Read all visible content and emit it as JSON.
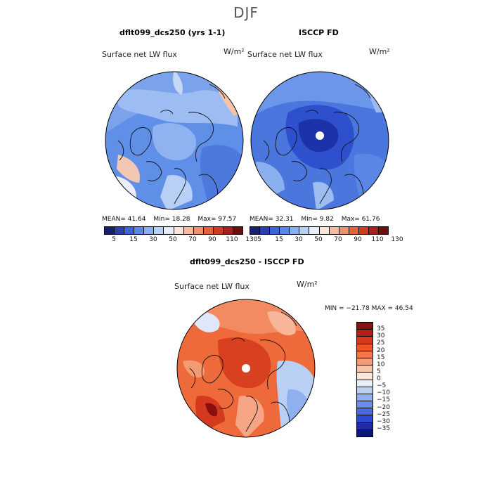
{
  "season": "DJF",
  "panels": [
    {
      "title": "dflt099_dcs250 (yrs 1-1)",
      "variable": "Surface net LW flux",
      "units": "W/m²",
      "stats": {
        "mean": "MEAN=  41.64",
        "min": "Min=   18.28",
        "max": "Max=   97.57"
      },
      "palette": [
        "#16226e",
        "#2c3fae",
        "#3d63d8",
        "#5a88e8",
        "#8aaff0",
        "#b8cff6",
        "#e6eefb",
        "#fbe5d6",
        "#f6bba0",
        "#f09170",
        "#e3643c",
        "#cf3c1f",
        "#a5201a",
        "#6b0f0f"
      ],
      "tick_labels": [
        "5",
        "15",
        "30",
        "50",
        "70",
        "90",
        "110",
        "130"
      ]
    },
    {
      "title": "ISCCP FD",
      "variable": "Surface net LW flux",
      "units": "W/m²",
      "stats": {
        "mean": "MEAN=  32.31",
        "min": "Min=    9.82",
        "max": "Max=  61.76"
      },
      "palette": [
        "#16226e",
        "#2c3fae",
        "#3d63d8",
        "#5a88e8",
        "#8aaff0",
        "#b8cff6",
        "#e6eefb",
        "#fbe5d6",
        "#f6bba0",
        "#f09170",
        "#e3643c",
        "#cf3c1f",
        "#a5201a",
        "#6b0f0f"
      ],
      "tick_labels": [
        "5",
        "15",
        "30",
        "50",
        "70",
        "90",
        "110",
        "130"
      ]
    }
  ],
  "diff": {
    "title": "dflt099_dcs250 - ISCCP FD",
    "variable": "Surface net LW flux",
    "units": "W/m²",
    "minmax": "MIN = −21.78 MAX =  46.54",
    "palette_top_to_bottom": [
      "#8a0f0f",
      "#b21e16",
      "#d63a1e",
      "#ec5526",
      "#f27846",
      "#f59b73",
      "#f8c4a8",
      "#fbe6d7",
      "#e8eefa",
      "#bccff2",
      "#8fb0ee",
      "#6a8ee7",
      "#4a6be0",
      "#2e49d1",
      "#1a2ca8",
      "#0b157a"
    ],
    "tick_labels": [
      "35",
      "30",
      "25",
      "20",
      "15",
      "10",
      "5",
      "0",
      "−5",
      "−10",
      "−15",
      "−20",
      "−25",
      "−30",
      "−35"
    ]
  }
}
